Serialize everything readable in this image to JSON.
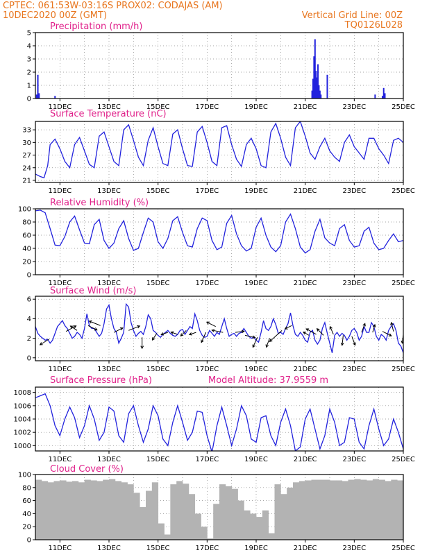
{
  "header": {
    "line1_left": "CPTEC:   061:53W-03:16S   PROX02: CODAJAS (AM)",
    "line2_left": "10DEC2020 00Z (GMT)",
    "line2_right": "Vertical Grid Line: 00Z",
    "line3_right": "TQ0126L028"
  },
  "colors": {
    "header": "#e8761f",
    "title": "#e0208a",
    "line": "#2222dd",
    "cloud": "#b3b3b3"
  },
  "x_axis": {
    "min": 10,
    "max": 25,
    "ticks": [
      11,
      13,
      15,
      17,
      19,
      21,
      23,
      25
    ],
    "tick_labels": [
      "11DEC",
      "13DEC",
      "15DEC",
      "17DEC",
      "19DEC",
      "21DEC",
      "23DEC",
      "25DEC"
    ]
  },
  "chart_data": [
    {
      "type": "bar",
      "title": "Precipitation (mm/h)",
      "ylim": [
        0,
        5
      ],
      "yticks": [
        0,
        1,
        2,
        3,
        4,
        5
      ],
      "x": [
        10.05,
        10.1,
        10.15,
        10.8,
        21.28,
        21.32,
        21.36,
        21.4,
        21.44,
        21.48,
        21.52,
        21.56,
        21.6,
        21.64,
        21.9,
        23.85,
        24.15,
        24.2,
        24.25
      ],
      "values": [
        0.3,
        1.8,
        0.4,
        0.2,
        0.6,
        1.5,
        3.2,
        4.5,
        2.1,
        1.6,
        2.6,
        1.0,
        0.6,
        0.3,
        1.8,
        0.3,
        0.2,
        0.8,
        0.4
      ]
    },
    {
      "type": "line",
      "title": "Surface Temperature (nC)",
      "ylim": [
        20.5,
        35
      ],
      "yticks": [
        21,
        24,
        27,
        30,
        33
      ],
      "x": [
        10.0,
        10.1,
        10.2,
        10.35,
        10.5,
        10.6,
        10.8,
        11.0,
        11.2,
        11.4,
        11.6,
        11.8,
        12.0,
        12.2,
        12.4,
        12.6,
        12.8,
        13.0,
        13.2,
        13.4,
        13.6,
        13.8,
        14.0,
        14.2,
        14.4,
        14.6,
        14.8,
        15.0,
        15.2,
        15.4,
        15.6,
        15.8,
        16.0,
        16.2,
        16.4,
        16.6,
        16.8,
        17.0,
        17.2,
        17.4,
        17.6,
        17.8,
        18.0,
        18.2,
        18.4,
        18.6,
        18.8,
        19.0,
        19.2,
        19.4,
        19.6,
        19.8,
        20.0,
        20.2,
        20.4,
        20.6,
        20.8,
        21.0,
        21.2,
        21.4,
        21.6,
        21.8,
        22.0,
        22.2,
        22.4,
        22.6,
        22.8,
        23.0,
        23.2,
        23.4,
        23.6,
        23.8,
        24.0,
        24.2,
        24.4,
        24.6,
        24.8,
        25.0
      ],
      "values": [
        22.5,
        22.2,
        21.9,
        21.6,
        24.5,
        29.5,
        30.8,
        28.5,
        25.5,
        24.0,
        29.5,
        31.2,
        28.0,
        24.8,
        24.0,
        31.5,
        32.5,
        29.0,
        25.5,
        24.5,
        33.0,
        34.2,
        30.5,
        26.5,
        24.5,
        30.5,
        33.5,
        29.0,
        25.0,
        24.5,
        32.0,
        33.0,
        28.5,
        24.5,
        24.3,
        32.5,
        33.8,
        30.0,
        25.5,
        24.5,
        33.5,
        34.0,
        29.5,
        26.0,
        24.3,
        29.5,
        31.0,
        28.5,
        24.5,
        24.0,
        32.5,
        34.5,
        31.0,
        26.5,
        24.5,
        33.5,
        35.0,
        31.5,
        27.5,
        26.0,
        29.0,
        31.0,
        28.0,
        26.5,
        25.5,
        30.0,
        31.8,
        29.0,
        27.5,
        26.0,
        31.0,
        31.0,
        28.5,
        27.0,
        25.0,
        30.5,
        31.0,
        30.0
      ]
    },
    {
      "type": "line",
      "title": "Relative Humidity (%)",
      "ylim": [
        0,
        100
      ],
      "yticks": [
        0,
        20,
        40,
        60,
        80,
        100
      ],
      "x": [
        10.0,
        10.2,
        10.4,
        10.6,
        10.8,
        11.0,
        11.2,
        11.4,
        11.6,
        11.8,
        12.0,
        12.2,
        12.4,
        12.6,
        12.8,
        13.0,
        13.2,
        13.4,
        13.6,
        13.8,
        14.0,
        14.2,
        14.4,
        14.6,
        14.8,
        15.0,
        15.2,
        15.4,
        15.6,
        15.8,
        16.0,
        16.2,
        16.4,
        16.6,
        16.8,
        17.0,
        17.2,
        17.4,
        17.6,
        17.8,
        18.0,
        18.2,
        18.4,
        18.6,
        18.8,
        19.0,
        19.2,
        19.4,
        19.6,
        19.8,
        20.0,
        20.2,
        20.4,
        20.6,
        20.8,
        21.0,
        21.2,
        21.4,
        21.6,
        21.8,
        22.0,
        22.2,
        22.4,
        22.6,
        22.8,
        23.0,
        23.2,
        23.4,
        23.6,
        23.8,
        24.0,
        24.2,
        24.4,
        24.6,
        24.8,
        25.0
      ],
      "values": [
        97,
        98,
        94,
        70,
        45,
        44,
        58,
        80,
        89,
        68,
        48,
        47,
        76,
        84,
        52,
        40,
        48,
        70,
        82,
        55,
        37,
        40,
        64,
        86,
        80,
        50,
        40,
        55,
        82,
        88,
        64,
        44,
        42,
        70,
        86,
        82,
        52,
        38,
        42,
        78,
        90,
        62,
        44,
        36,
        40,
        72,
        86,
        60,
        42,
        35,
        44,
        80,
        92,
        70,
        42,
        33,
        38,
        66,
        84,
        56,
        48,
        44,
        70,
        76,
        52,
        42,
        44,
        66,
        72,
        48,
        38,
        40,
        52,
        62,
        50,
        52
      ]
    },
    {
      "type": "line",
      "title": "Surface Wind (m/s)",
      "ylim": [
        -0.3,
        6.3
      ],
      "yticks": [
        0,
        2,
        4,
        6
      ],
      "x": [
        10.0,
        10.1,
        10.2,
        10.3,
        10.4,
        10.5,
        10.6,
        10.7,
        10.8,
        10.9,
        11.0,
        11.1,
        11.2,
        11.3,
        11.4,
        11.5,
        11.6,
        11.7,
        11.8,
        11.9,
        12.0,
        12.1,
        12.2,
        12.3,
        12.4,
        12.5,
        12.6,
        12.7,
        12.8,
        12.9,
        13.0,
        13.1,
        13.2,
        13.3,
        13.4,
        13.5,
        13.6,
        13.7,
        13.8,
        13.9,
        14.0,
        14.1,
        14.2,
        14.3,
        14.4,
        14.5,
        14.6,
        14.7,
        14.8,
        14.9,
        15.0,
        15.1,
        15.2,
        15.3,
        15.4,
        15.5,
        15.6,
        15.7,
        15.8,
        15.9,
        16.0,
        16.1,
        16.2,
        16.3,
        16.4,
        16.5,
        16.6,
        16.7,
        16.8,
        16.9,
        17.0,
        17.1,
        17.2,
        17.3,
        17.4,
        17.5,
        17.6,
        17.7,
        17.8,
        17.9,
        18.0,
        18.1,
        18.2,
        18.3,
        18.4,
        18.5,
        18.6,
        18.7,
        18.8,
        18.9,
        19.0,
        19.1,
        19.2,
        19.3,
        19.4,
        19.5,
        19.6,
        19.7,
        19.8,
        19.9,
        20.0,
        20.1,
        20.2,
        20.3,
        20.4,
        20.5,
        20.6,
        20.7,
        20.8,
        20.9,
        21.0,
        21.1,
        21.2,
        21.3,
        21.4,
        21.5,
        21.6,
        21.7,
        21.8,
        21.9,
        22.0,
        22.1,
        22.2,
        22.3,
        22.4,
        22.5,
        22.6,
        22.7,
        22.8,
        22.9,
        23.0,
        23.1,
        23.2,
        23.3,
        23.4,
        23.5,
        23.6,
        23.7,
        23.8,
        23.9,
        24.0,
        24.1,
        24.2,
        24.3,
        24.4,
        24.5,
        24.6,
        24.7,
        24.8,
        24.9,
        25.0
      ],
      "values": [
        3.2,
        2.5,
        2.2,
        2.0,
        1.8,
        1.9,
        1.5,
        1.8,
        2.5,
        3.2,
        3.5,
        3.8,
        3.3,
        3.0,
        2.5,
        2.0,
        2.2,
        2.6,
        2.4,
        2.0,
        3.0,
        4.5,
        3.3,
        3.0,
        3.0,
        2.6,
        2.2,
        2.5,
        3.5,
        5.0,
        5.4,
        4.0,
        3.0,
        2.6,
        1.5,
        2.0,
        2.6,
        5.5,
        5.2,
        3.6,
        2.8,
        2.2,
        2.5,
        2.7,
        2.4,
        3.2,
        4.4,
        4.0,
        2.8,
        2.6,
        2.3,
        2.1,
        2.4,
        2.6,
        2.8,
        2.5,
        2.3,
        2.2,
        2.4,
        2.8,
        2.9,
        2.4,
        2.8,
        3.2,
        3.0,
        4.5,
        3.8,
        2.8,
        2.3,
        2.1,
        2.2,
        2.8,
        2.5,
        2.2,
        2.6,
        2.4,
        3.2,
        4.0,
        3.0,
        2.2,
        2.4,
        2.5,
        2.2,
        2.5,
        2.6,
        3.0,
        2.6,
        2.2,
        2.0,
        2.1,
        1.8,
        1.6,
        2.6,
        3.8,
        3.0,
        2.8,
        3.2,
        4.0,
        3.4,
        2.5,
        2.6,
        2.4,
        3.0,
        3.5,
        4.6,
        3.3,
        2.4,
        2.2,
        2.6,
        2.3,
        1.8,
        1.6,
        2.6,
        2.8,
        1.8,
        1.4,
        1.8,
        3.0,
        3.6,
        2.5,
        1.5,
        0.5,
        2.3,
        2.6,
        2.2,
        2.5,
        2.3,
        1.8,
        2.2,
        2.8,
        3.0,
        2.6,
        1.8,
        2.2,
        3.2,
        2.6,
        2.6,
        3.6,
        3.2,
        2.2,
        1.8,
        2.4,
        2.2,
        1.8,
        2.8,
        3.2,
        3.5,
        2.8,
        1.5,
        1.2,
        0.5
      ],
      "arrows": {
        "x": [
          10.0,
          10.55,
          11.25,
          11.7,
          12.15,
          12.65,
          13.2,
          13.8,
          14.35,
          14.95,
          15.4,
          15.8,
          16.15,
          16.55,
          16.95,
          17.35,
          17.65,
          18.15,
          18.55,
          19.05,
          19.55,
          20.05,
          20.45,
          21.15,
          21.45,
          21.75,
          22.15,
          22.55,
          22.9,
          23.3,
          23.75,
          24.15,
          24.6,
          25.0
        ],
        "y": [
          3.2,
          1.9,
          2.7,
          2.8,
          3.3,
          3.3,
          2.6,
          2.8,
          2.1,
          2.5,
          2.6,
          2.4,
          2.8,
          2.6,
          2.6,
          3.2,
          2.6,
          2.6,
          2.3,
          2.1,
          2.0,
          2.8,
          3.3,
          2.3,
          2.4,
          2.3,
          2.4,
          2.3,
          2.2,
          2.6,
          2.6,
          2.7,
          2.7,
          2.4
        ],
        "u": [
          -1.0,
          -0.8,
          0.9,
          -0.6,
          0.8,
          -1.0,
          0.8,
          1.0,
          0.0,
          -0.4,
          -0.6,
          -0.6,
          -0.5,
          -0.6,
          -0.4,
          -0.8,
          -1.0,
          0.8,
          0.9,
          -0.4,
          -0.3,
          -1.1,
          -0.6,
          -0.5,
          -0.9,
          -0.6,
          -0.3,
          -0.1,
          0.3,
          0.3,
          0.2,
          0.8,
          -0.2,
          -0.1
        ],
        "v": [
          0.5,
          -0.5,
          0.5,
          0.4,
          -0.4,
          0.4,
          0.4,
          0.4,
          -1.0,
          -0.6,
          -0.2,
          0.2,
          -0.5,
          -0.2,
          -0.9,
          0.4,
          0.2,
          0.1,
          -0.2,
          -0.9,
          -0.8,
          -1.0,
          -0.3,
          0.3,
          0.5,
          0.6,
          0.7,
          -0.9,
          -0.8,
          0.8,
          0.7,
          -0.4,
          0.8,
          -0.8
        ]
      }
    },
    {
      "type": "line",
      "title": "Surface Pressure (hPa)",
      "annotation": "Model Altitude: 37.9559 m",
      "ylim": [
        999.2,
        1008.8
      ],
      "yticks": [
        1000,
        1002,
        1004,
        1006,
        1008
      ],
      "x": [
        10.0,
        10.2,
        10.4,
        10.6,
        10.8,
        11.0,
        11.2,
        11.4,
        11.6,
        11.8,
        12.0,
        12.2,
        12.4,
        12.6,
        12.8,
        13.0,
        13.2,
        13.4,
        13.6,
        13.8,
        14.0,
        14.2,
        14.4,
        14.6,
        14.8,
        15.0,
        15.2,
        15.4,
        15.6,
        15.8,
        16.0,
        16.2,
        16.4,
        16.6,
        16.8,
        17.0,
        17.2,
        17.4,
        17.6,
        17.8,
        18.0,
        18.2,
        18.4,
        18.6,
        18.8,
        19.0,
        19.2,
        19.4,
        19.6,
        19.8,
        20.0,
        20.2,
        20.4,
        20.6,
        20.8,
        21.0,
        21.2,
        21.4,
        21.6,
        21.8,
        22.0,
        22.2,
        22.4,
        22.6,
        22.8,
        23.0,
        23.2,
        23.4,
        23.6,
        23.8,
        24.0,
        24.2,
        24.4,
        24.6,
        24.8,
        25.0
      ],
      "values": [
        1007.2,
        1007.5,
        1007.8,
        1006.0,
        1003.0,
        1001.5,
        1004.0,
        1005.8,
        1004.2,
        1001.2,
        1003.0,
        1006.0,
        1004.0,
        1000.8,
        1002.0,
        1005.8,
        1005.2,
        1001.5,
        1000.5,
        1004.8,
        1006.0,
        1003.0,
        1000.5,
        1002.5,
        1006.0,
        1004.5,
        1001.0,
        1000.0,
        1003.5,
        1006.0,
        1003.5,
        1000.8,
        1002.0,
        1005.2,
        1005.0,
        1001.5,
        999.0,
        1003.0,
        1005.8,
        1003.0,
        1000.0,
        1002.5,
        1006.0,
        1004.5,
        1001.0,
        1000.5,
        1004.2,
        1004.5,
        1001.5,
        1000.0,
        1003.5,
        1005.5,
        1003.0,
        999.2,
        999.8,
        1004.0,
        1005.5,
        1002.5,
        999.5,
        1001.5,
        1005.5,
        1003.5,
        1000.0,
        1000.5,
        1004.2,
        1004.0,
        1000.5,
        999.5,
        1003.0,
        1005.5,
        1002.5,
        1000.0,
        1001.0,
        1004.0,
        1002.0,
        999.5
      ]
    },
    {
      "type": "bar",
      "title": "Cloud Cover (%)",
      "ylim": [
        0,
        100
      ],
      "yticks": [
        0,
        20,
        40,
        60,
        80,
        100
      ],
      "x": [
        10.0,
        10.25,
        10.5,
        10.75,
        11.0,
        11.25,
        11.5,
        11.75,
        12.0,
        12.25,
        12.5,
        12.75,
        13.0,
        13.25,
        13.5,
        13.75,
        14.0,
        14.25,
        14.5,
        14.75,
        15.0,
        15.25,
        15.5,
        15.75,
        16.0,
        16.25,
        16.5,
        16.75,
        17.0,
        17.25,
        17.5,
        17.75,
        18.0,
        18.25,
        18.5,
        18.75,
        19.0,
        19.25,
        19.5,
        19.75,
        20.0,
        20.25,
        20.5,
        20.75,
        21.0,
        21.25,
        21.5,
        21.75,
        22.0,
        22.25,
        22.5,
        22.75,
        23.0,
        23.25,
        23.5,
        23.75,
        24.0,
        24.25,
        24.5,
        24.75
      ],
      "values": [
        92,
        90,
        88,
        90,
        91,
        89,
        90,
        88,
        92,
        91,
        90,
        92,
        93,
        90,
        88,
        85,
        72,
        50,
        75,
        88,
        25,
        8,
        85,
        90,
        86,
        70,
        40,
        20,
        2,
        55,
        85,
        82,
        78,
        60,
        45,
        40,
        35,
        45,
        10,
        85,
        70,
        80,
        88,
        90,
        91,
        92,
        92,
        92,
        91,
        91,
        90,
        92,
        93,
        92,
        91,
        93,
        92,
        90,
        92,
        91
      ]
    }
  ]
}
